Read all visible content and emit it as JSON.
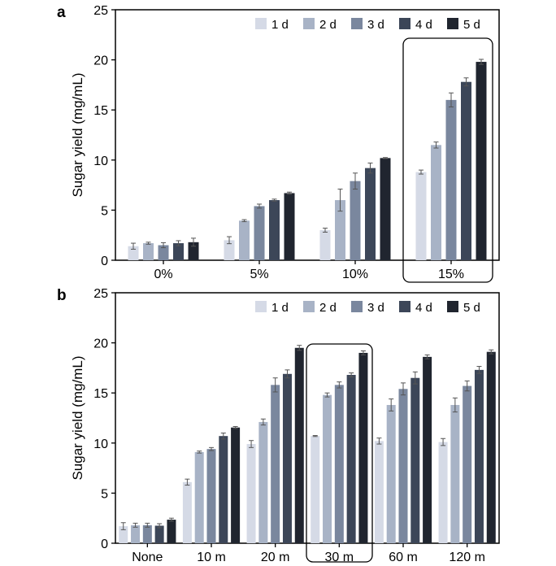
{
  "colors": [
    "#d5dae6",
    "#a8b3c6",
    "#7a879e",
    "#3c4658",
    "#20252f"
  ],
  "chart_data": [
    {
      "type": "bar",
      "panel": "a",
      "ylabel": "Sugar yield (mg/mL)",
      "ylim": [
        0,
        25
      ],
      "yticks": [
        "0",
        "5",
        "10",
        "15",
        "20",
        "25"
      ],
      "categories": [
        "0%",
        "5%",
        "10%",
        "15%"
      ],
      "highlighted_category": "15%",
      "legend": [
        "1 d",
        "2 d",
        "3 d",
        "4 d",
        "5 d"
      ],
      "legend_position": "top-right",
      "series": [
        {
          "name": "1 d",
          "values": [
            1.4,
            2.0,
            3.0,
            8.8
          ],
          "errors": [
            0.3,
            0.35,
            0.2,
            0.2
          ]
        },
        {
          "name": "2 d",
          "values": [
            1.7,
            3.95,
            6.0,
            11.5
          ],
          "errors": [
            0.1,
            0.1,
            1.1,
            0.3
          ]
        },
        {
          "name": "3 d",
          "values": [
            1.5,
            5.4,
            7.9,
            16.0
          ],
          "errors": [
            0.25,
            0.2,
            0.8,
            0.7
          ]
        },
        {
          "name": "4 d",
          "values": [
            1.7,
            6.0,
            9.2,
            17.8
          ],
          "errors": [
            0.25,
            0.1,
            0.5,
            0.4
          ]
        },
        {
          "name": "5 d",
          "values": [
            1.8,
            6.7,
            10.2,
            19.8
          ],
          "errors": [
            0.4,
            0.1,
            0.05,
            0.25
          ]
        }
      ]
    },
    {
      "type": "bar",
      "panel": "b",
      "ylabel": "Sugar yield (mg/mL)",
      "ylim": [
        0,
        25
      ],
      "yticks": [
        "0",
        "5",
        "10",
        "15",
        "20",
        "25"
      ],
      "categories": [
        "None",
        "10 m",
        "20 m",
        "30 m",
        "60 m",
        "120 m"
      ],
      "highlighted_category": "30 m",
      "legend": [
        "1 d",
        "2 d",
        "3 d",
        "4 d",
        "5 d"
      ],
      "legend_position": "top-right",
      "series": [
        {
          "name": "1 d",
          "values": [
            1.7,
            6.1,
            9.9,
            10.7,
            10.2,
            10.1
          ],
          "errors": [
            0.35,
            0.3,
            0.35,
            0.05,
            0.3,
            0.35
          ]
        },
        {
          "name": "2 d",
          "values": [
            1.8,
            9.1,
            12.1,
            14.8,
            13.8,
            13.8
          ],
          "errors": [
            0.2,
            0.1,
            0.3,
            0.2,
            0.6,
            0.7
          ]
        },
        {
          "name": "3 d",
          "values": [
            1.8,
            9.4,
            15.8,
            15.8,
            15.4,
            15.7
          ],
          "errors": [
            0.2,
            0.15,
            0.7,
            0.3,
            0.6,
            0.5
          ]
        },
        {
          "name": "4 d",
          "values": [
            1.75,
            10.7,
            16.9,
            16.8,
            16.5,
            17.3
          ],
          "errors": [
            0.2,
            0.3,
            0.4,
            0.2,
            0.6,
            0.35
          ]
        },
        {
          "name": "5 d",
          "values": [
            2.35,
            11.55,
            19.5,
            19.0,
            18.6,
            19.1
          ],
          "errors": [
            0.15,
            0.1,
            0.25,
            0.2,
            0.2,
            0.2
          ]
        }
      ]
    }
  ]
}
